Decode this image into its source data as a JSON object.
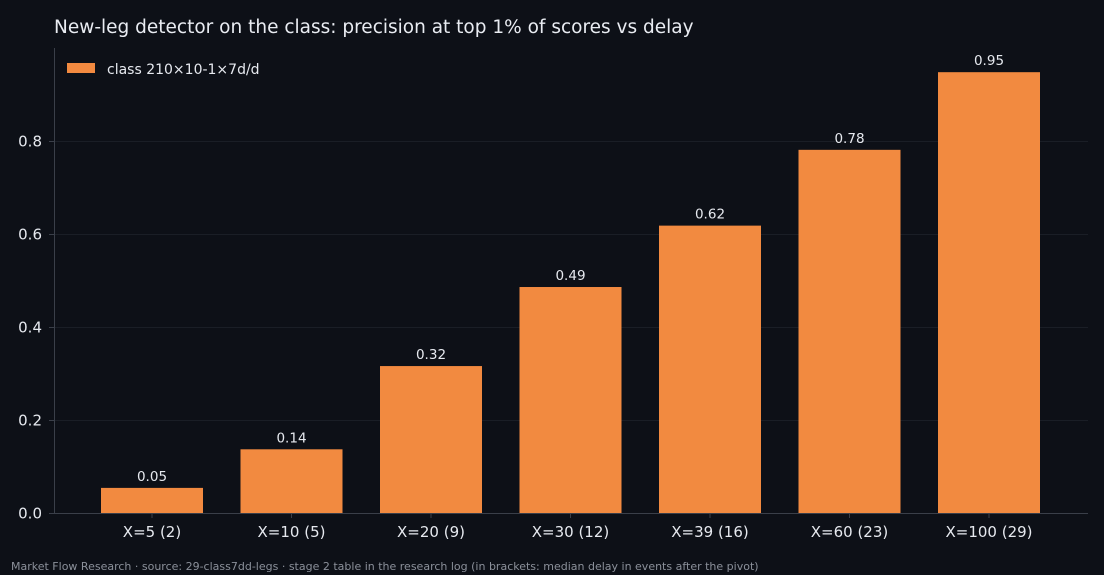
{
  "chart_data": {
    "type": "bar",
    "title": "New-leg detector on the class: precision at top 1% of scores vs delay",
    "xlabel": "",
    "ylabel": "",
    "categories": [
      "X=5 (2)",
      "X=10 (5)",
      "X=20 (9)",
      "X=30 (12)",
      "X=39 (16)",
      "X=60 (23)",
      "X=100 (29)"
    ],
    "series": [
      {
        "name": "class 210×10-1×7d/d",
        "values": [
          0.054,
          0.137,
          0.316,
          0.486,
          0.618,
          0.781,
          0.948
        ],
        "value_labels": [
          "0.05",
          "0.14",
          "0.32",
          "0.49",
          "0.62",
          "0.78",
          "0.95"
        ],
        "color": "#f28a40"
      }
    ],
    "ylim": [
      0,
      1.0
    ],
    "yticks": [
      0.0,
      0.2,
      0.4,
      0.6,
      0.8
    ],
    "ytick_labels": [
      "0.0",
      "0.2",
      "0.4",
      "0.6",
      "0.8"
    ],
    "grid": true,
    "legend_position": "top-left"
  },
  "footer": {
    "text": "Market Flow Research · source: 29-class7dd-legs · stage 2 table in the research log (in brackets: median delay in events after the pivot)"
  },
  "colors": {
    "background": "#0d1017",
    "axis": "#3a3f49",
    "grid": "#1a1e26",
    "text": "#e6e9ef",
    "muted": "#8b909a"
  }
}
